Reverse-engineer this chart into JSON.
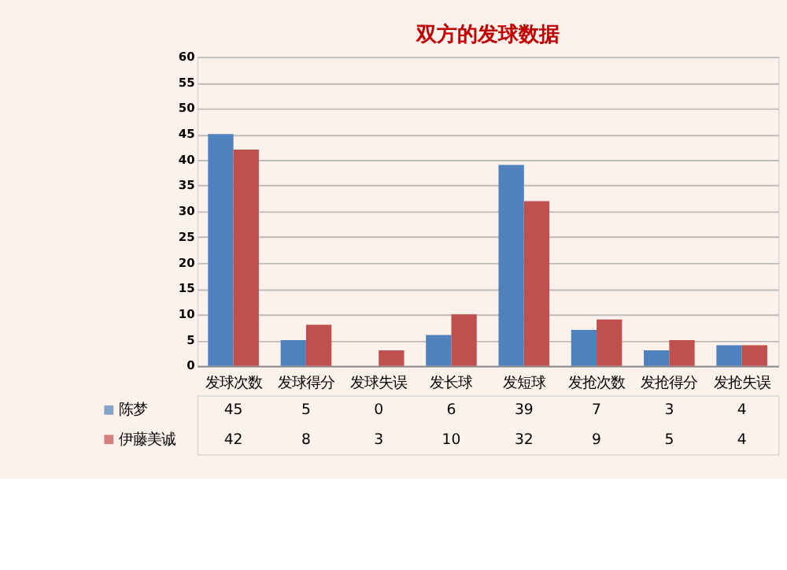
{
  "chart_data": {
    "type": "bar",
    "title": "双方的发球数据",
    "categories": [
      "发球次数",
      "发球得分",
      "发球失误",
      "发长球",
      "发短球",
      "发抢次数",
      "发抢得分",
      "发抢失误"
    ],
    "series": [
      {
        "name": "陈梦",
        "color": "#4f81bd",
        "values": [
          45,
          5,
          0,
          6,
          39,
          7,
          3,
          4
        ]
      },
      {
        "name": "伊藤美诚",
        "color": "#c0504d",
        "values": [
          42,
          8,
          3,
          10,
          32,
          9,
          5,
          4
        ]
      }
    ],
    "ylim": [
      0,
      60
    ],
    "yticks": [
      0,
      5,
      10,
      15,
      20,
      25,
      30,
      35,
      40,
      45,
      50,
      55,
      60
    ],
    "grid": "y",
    "legend": "bottom",
    "data_labels": true
  }
}
